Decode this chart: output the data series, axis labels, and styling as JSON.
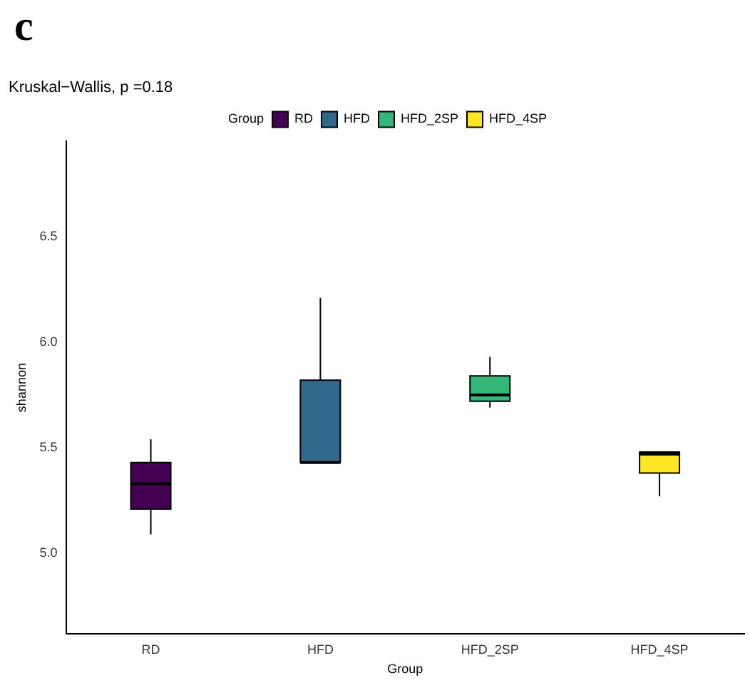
{
  "chart_data": {
    "type": "box",
    "title": "Kruskal−Wallis, p =0.18",
    "annotations": [
      "c"
    ],
    "xlabel": "Group",
    "ylabel": "shannon",
    "legend_title": "Group",
    "legend": "top",
    "categories": [
      "RD",
      "HFD",
      "HFD_2SP",
      "HFD_4SP"
    ],
    "series": [
      {
        "name": "RD",
        "color": "#440154",
        "boxes": [
          {
            "low": 5.09,
            "q1": 5.21,
            "median": 5.33,
            "q3": 5.43,
            "high": 5.54
          },
          null,
          null,
          null
        ]
      },
      {
        "name": "HFD",
        "color": "#31688e",
        "boxes": [
          null,
          {
            "low": 5.43,
            "q1": 5.43,
            "median": 5.43,
            "q3": 5.82,
            "high": 6.21
          },
          null,
          null
        ]
      },
      {
        "name": "HFD_2SP",
        "color": "#35b779",
        "boxes": [
          null,
          null,
          {
            "low": 5.69,
            "q1": 5.72,
            "median": 5.75,
            "q3": 5.84,
            "high": 5.93
          },
          null
        ]
      },
      {
        "name": "HFD_4SP",
        "color": "#fde725",
        "boxes": [
          null,
          null,
          null,
          {
            "low": 5.27,
            "q1": 5.38,
            "median": 5.47,
            "q3": 5.48,
            "high": 5.48
          }
        ]
      }
    ],
    "ylim": [
      4.62,
      6.95
    ],
    "yticks": [
      {
        "value": 5,
        "label": "5.0"
      },
      {
        "value": 5.5,
        "label": "5.5"
      },
      {
        "value": 6,
        "label": "6.0"
      },
      {
        "value": 6.5,
        "label": "6.5"
      }
    ],
    "grid": false
  }
}
